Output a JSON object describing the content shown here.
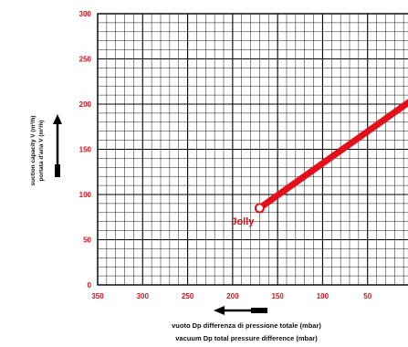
{
  "chart_data": {
    "type": "line",
    "xlabel_lines": [
      "vuoto Dp differenza di pressione totale (mbar)",
      "vacuum Dp total pressure difference (mbar)"
    ],
    "ylabel_lines": [
      "suction capacity V (m³/h)",
      "portata d'aria V (m³/h)"
    ],
    "xlim": [
      350,
      0
    ],
    "ylim": [
      0,
      300
    ],
    "x_ticks": [
      "350",
      "300",
      "250",
      "200",
      "150",
      "100",
      "50"
    ],
    "y_ticks": [
      "0",
      "50",
      "100",
      "150",
      "200",
      "250",
      "300"
    ],
    "grid": true,
    "series": [
      {
        "name": "Jolly",
        "color": "#e3101b",
        "x": [
          170,
          0
        ],
        "y": [
          85,
          205
        ]
      }
    ],
    "annotations": [
      {
        "text": "Jolly",
        "x": 170,
        "y": 85
      }
    ]
  }
}
